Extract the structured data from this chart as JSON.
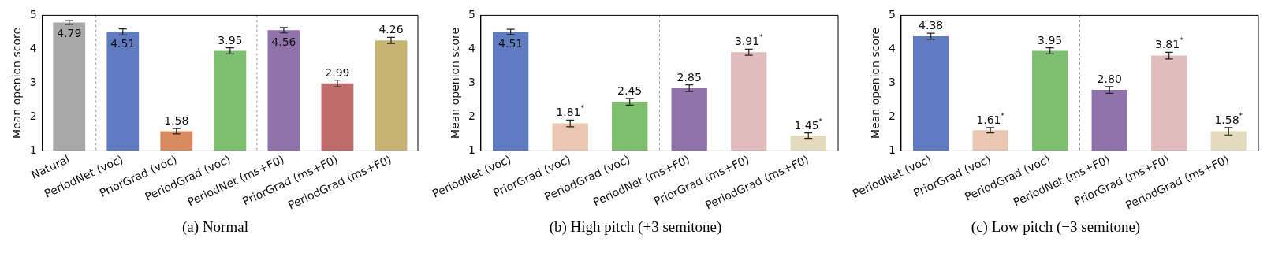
{
  "chart_data": [
    {
      "type": "bar",
      "title": "(a) Normal",
      "ylabel": "Mean openion score",
      "categories": [
        "Natural",
        "PeriodNet (voc)",
        "PriorGrad (voc)",
        "PeriodGrad (voc)",
        "PeriodNet (ms+F0)",
        "PriorGrad (ms+F0)",
        "PeriodGrad (ms+F0)"
      ],
      "values": [
        4.79,
        4.51,
        1.58,
        3.95,
        4.56,
        2.99,
        4.26
      ],
      "errors": [
        0.06,
        0.09,
        0.08,
        0.09,
        0.08,
        0.1,
        0.09
      ],
      "colors": [
        "#a8a8a8",
        "#5f7cc2",
        "#d98b5f",
        "#7dbf6c",
        "#9073ab",
        "#c06b6b",
        "#c6b374"
      ],
      "value_labels": [
        "4.79",
        "4.51",
        "1.58",
        "3.95",
        "4.56",
        "2.99",
        "4.26"
      ],
      "ylim": [
        1,
        5
      ],
      "yticks": [
        1,
        2,
        3,
        4,
        5
      ],
      "grid": false,
      "legend": false
    },
    {
      "type": "bar",
      "title": "(b) High pitch (+3 semitone)",
      "ylabel": "Mean openion score",
      "categories": [
        "PeriodNet (voc)",
        "PriorGrad (voc)",
        "PeriodGrad (voc)",
        "PeriodNet (ms+F0)",
        "PriorGrad (ms+F0)",
        "PeriodGrad (ms+F0)"
      ],
      "values": [
        4.51,
        1.81,
        2.45,
        2.85,
        3.91,
        1.45
      ],
      "errors": [
        0.08,
        0.1,
        0.1,
        0.1,
        0.09,
        0.08
      ],
      "colors": [
        "#5f7cc2",
        "#e9c7b0",
        "#7dbf6c",
        "#9073ab",
        "#e0bcbc",
        "#e3dcbc"
      ],
      "value_labels": [
        "4.51",
        "1.81$^{*}$",
        "2.45",
        "2.85",
        "3.91$^{*}$",
        "1.45$^{*}$"
      ],
      "ylim": [
        1,
        5
      ],
      "yticks": [
        1,
        2,
        3,
        4,
        5
      ],
      "grid": false,
      "legend": false
    },
    {
      "type": "bar",
      "title": "(c) Low pitch (−3 semitone)",
      "ylabel": "Mean openion score",
      "categories": [
        "PeriodNet (voc)",
        "PriorGrad (voc)",
        "PeriodGrad (voc)",
        "PeriodNet (ms+F0)",
        "PriorGrad (ms+F0)",
        "PeriodGrad (ms+F0)"
      ],
      "values": [
        4.38,
        1.61,
        3.95,
        2.8,
        3.81,
        1.58
      ],
      "errors": [
        0.09,
        0.08,
        0.09,
        0.1,
        0.1,
        0.11
      ],
      "colors": [
        "#5f7cc2",
        "#e9c7b0",
        "#7dbf6c",
        "#9073ab",
        "#e0bcbc",
        "#e3dcbc"
      ],
      "value_labels": [
        "4.38",
        "1.61$^{*}$",
        "3.95",
        "2.80",
        "3.81$^{*}$",
        "1.58$^{*}$"
      ],
      "ylim": [
        1,
        5
      ],
      "yticks": [
        1,
        2,
        3,
        4,
        5
      ],
      "grid": false,
      "legend": false
    }
  ]
}
